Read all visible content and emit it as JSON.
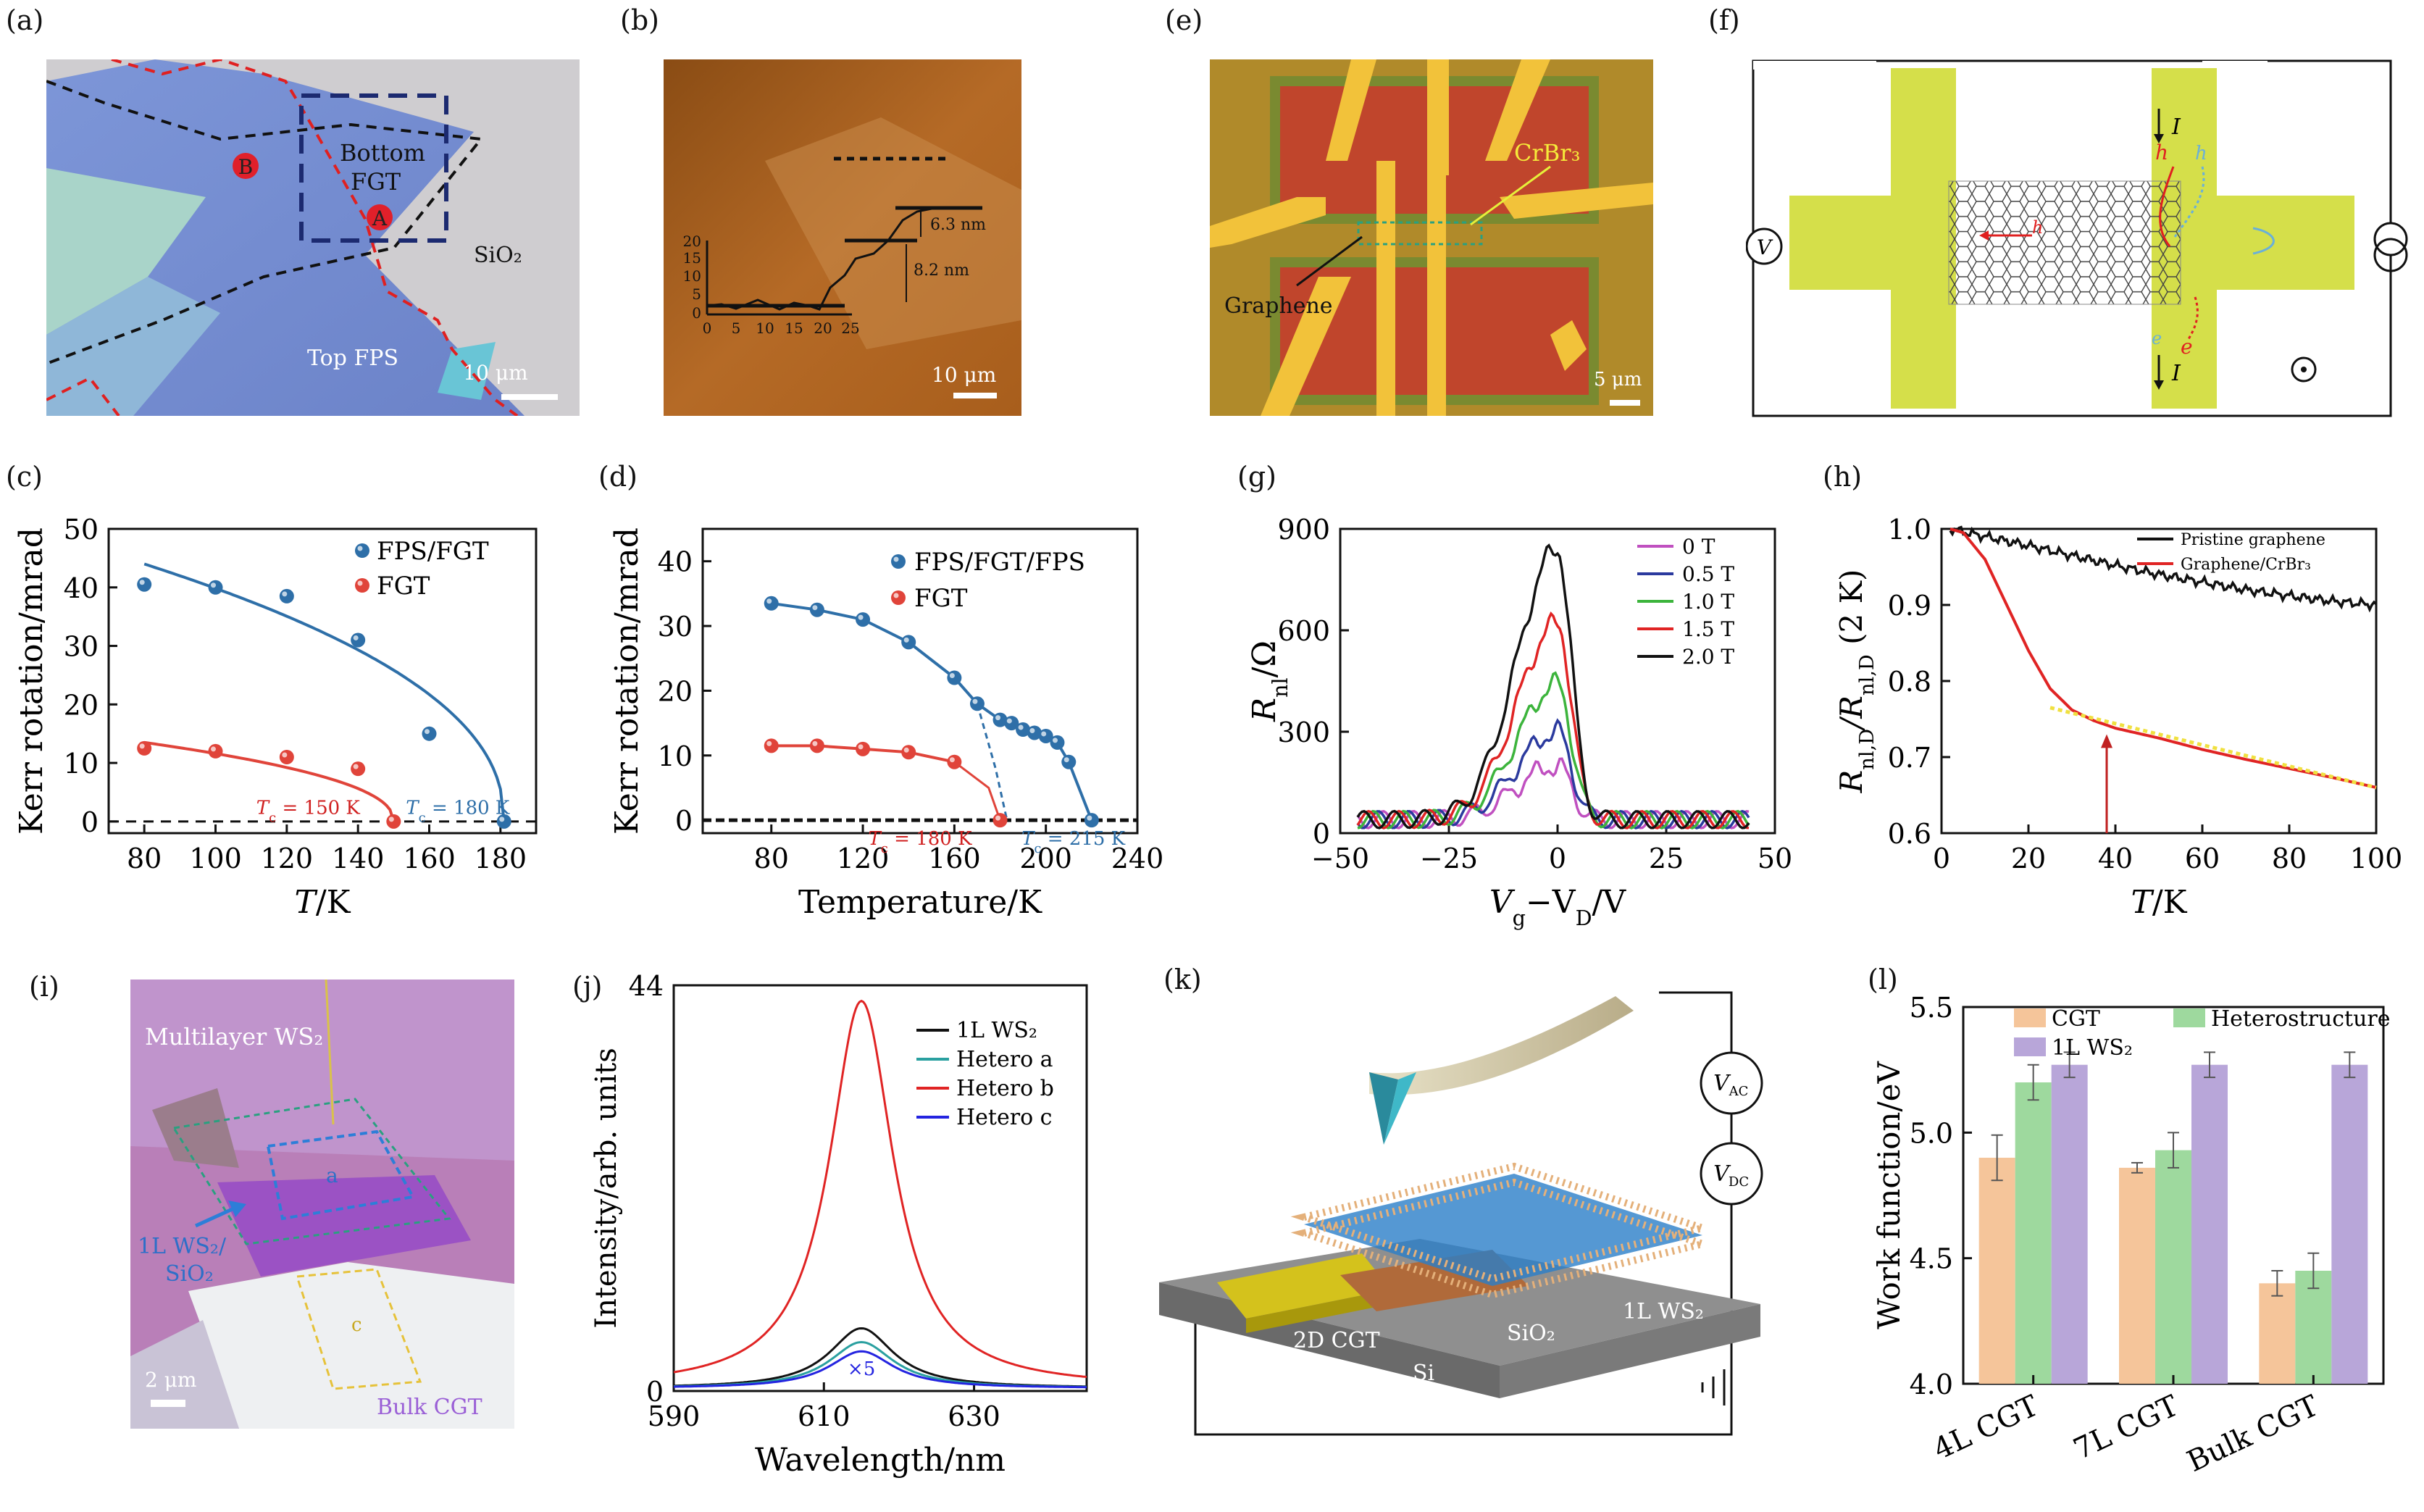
{
  "panel_labels": {
    "a": "(a)",
    "b": "(b)",
    "c": "(c)",
    "d": "(d)",
    "e": "(e)",
    "f": "(f)",
    "g": "(g)",
    "h": "(h)",
    "i": "(i)",
    "j": "(j)",
    "k": "(k)",
    "l": "(l)"
  },
  "panel_a": {
    "bottom_fgt_1": "Bottom",
    "bottom_fgt_2": "FGT",
    "sio2": "SiO₂",
    "top_fps": "Top FPS",
    "scale": "10 μm",
    "marker_a": "A",
    "marker_b": "B",
    "colors": {
      "marker": "#e0202a"
    }
  },
  "panel_b": {
    "scale": "10 μm",
    "step1": "6.3 nm",
    "step2": "8.2 nm",
    "yticks": [
      "20",
      "15",
      "10",
      "5",
      "0"
    ],
    "xticks": [
      "0",
      "5",
      "10",
      "15",
      "20",
      "25"
    ]
  },
  "panel_e": {
    "crbr3": "CrBr₃",
    "graphene": "Graphene",
    "scale": "5 μm"
  },
  "panel_f": {
    "v": "V",
    "i_top": "I",
    "i_bot": "I",
    "h": "h",
    "e": "e",
    "h2": "h",
    "e2": "e",
    "h3": "h"
  },
  "panel_i": {
    "multilayer": "Multilayer WS₂",
    "mono_1": "1L WS₂/",
    "mono_2": "SiO₂",
    "bulk": "Bulk CGT",
    "region_a": "a",
    "region_c": "c",
    "scale": "2 μm"
  },
  "panel_k": {
    "vac": "V",
    "vac_sub": "AC",
    "vdc": "V",
    "vdc_sub": "DC",
    "cgt": "2D CGT",
    "sio2": "SiO₂",
    "si": "Si",
    "ws2": "1L WS₂"
  },
  "chart_data": [
    {
      "id": "c",
      "type": "scatter",
      "ylabel": "Kerr rotation/mrad",
      "xlabel_i": "T",
      "xlabel_r": "/K",
      "xlim": [
        70,
        190
      ],
      "ylim": [
        -2,
        50
      ],
      "xticks": [
        80,
        100,
        120,
        140,
        160,
        180
      ],
      "yticks": [
        0,
        10,
        20,
        30,
        40,
        50
      ],
      "legend": "top-right",
      "series": [
        {
          "name": "FPS/FGT",
          "color": "#2e6fa8",
          "x": [
            80,
            100,
            120,
            140,
            160,
            181
          ],
          "y": [
            40.5,
            40,
            38.5,
            31,
            15,
            0
          ]
        },
        {
          "name": "FGT",
          "color": "#e0443a",
          "x": [
            80,
            100,
            120,
            140,
            150
          ],
          "y": [
            12.5,
            12,
            11,
            9,
            0
          ]
        }
      ],
      "annotations": [
        {
          "text": "T",
          "sub": "c",
          "rest": " = 150 K",
          "color": "#d02020"
        },
        {
          "text": "T",
          "sub": "c",
          "rest": " = 180 K",
          "color": "#2e6fa8"
        }
      ]
    },
    {
      "id": "d",
      "type": "scatter",
      "ylabel": "Kerr rotation/mrad",
      "xlabel": "Temperature/K",
      "xlim": [
        50,
        240
      ],
      "ylim": [
        -2,
        45
      ],
      "xticks": [
        80,
        120,
        160,
        200,
        240
      ],
      "yticks": [
        0,
        10,
        20,
        30,
        40
      ],
      "legend": "top-right",
      "series": [
        {
          "name": "FPS/FGT/FPS",
          "color": "#2e6fa8",
          "x": [
            80,
            100,
            120,
            140,
            160,
            170,
            180,
            185,
            190,
            195,
            200,
            205,
            210,
            220
          ],
          "y": [
            33.5,
            32.5,
            31,
            27.5,
            22,
            18,
            15.5,
            15,
            14,
            13.5,
            13,
            12,
            9,
            0
          ]
        },
        {
          "name": "FGT",
          "color": "#e0443a",
          "x": [
            80,
            100,
            120,
            140,
            160,
            180
          ],
          "y": [
            11.5,
            11.5,
            11,
            10.5,
            9,
            0
          ]
        }
      ],
      "annotations": [
        {
          "text": "T",
          "sub": "c",
          "rest": " = 180 K",
          "color": "#d02020"
        },
        {
          "text": "T",
          "sub": "c",
          "rest": " = 215 K",
          "color": "#2e6fa8"
        }
      ]
    },
    {
      "id": "g",
      "type": "line",
      "ylabel_i": "R",
      "ylabel_sub": "nl",
      "ylabel_r": "/Ω",
      "xlabel": "V",
      "xlabel_sub1": "g",
      "xlabel_mid": "−V",
      "xlabel_sub2": "D",
      "xlabel_end": "/V",
      "xlim": [
        -50,
        50
      ],
      "ylim": [
        0,
        900
      ],
      "xticks": [
        -50,
        -25,
        0,
        25,
        50
      ],
      "xtick_labels": [
        "−50",
        "−25",
        "0",
        "25",
        "50"
      ],
      "yticks": [
        0,
        300,
        600,
        900
      ],
      "legend": "top-right",
      "series": [
        {
          "name": "0 T",
          "color": "#c050c0",
          "peak": 200
        },
        {
          "name": "0.5 T",
          "color": "#2b3a9e",
          "peak": 300
        },
        {
          "name": "1.0 T",
          "color": "#3cb43c",
          "peak": 440
        },
        {
          "name": "1.5 T",
          "color": "#e02424",
          "peak": 620
        },
        {
          "name": "2.0 T",
          "color": "#111111",
          "peak": 840
        }
      ]
    },
    {
      "id": "h",
      "type": "line",
      "ylabel": "R",
      "ylabel_sub": "nl,D",
      "ylabel_mid": "/R",
      "ylabel_sub2": "nl,D",
      "ylabel_end": " (2 K)",
      "xlabel_i": "T",
      "xlabel_r": "/K",
      "xlim": [
        0,
        100
      ],
      "ylim": [
        0.6,
        1.0
      ],
      "xticks": [
        0,
        20,
        40,
        60,
        80,
        100
      ],
      "yticks": [
        0.6,
        0.7,
        0.8,
        0.9,
        1.0
      ],
      "ytick_labels": [
        "0.6",
        "0.7",
        "0.8",
        "0.9",
        "1.0"
      ],
      "legend": "top-right",
      "series": [
        {
          "name": "Pristine graphene",
          "color": "#111111",
          "x": [
            2,
            10,
            20,
            30,
            40,
            50,
            60,
            70,
            80,
            90,
            100
          ],
          "y": [
            1.0,
            0.99,
            0.978,
            0.965,
            0.952,
            0.94,
            0.93,
            0.92,
            0.912,
            0.905,
            0.9
          ]
        },
        {
          "name": "Graphene/CrBr₃",
          "color": "#e02424",
          "x": [
            2,
            5,
            10,
            15,
            20,
            25,
            30,
            35,
            40,
            50,
            60,
            70,
            80,
            90,
            100
          ],
          "y": [
            1.0,
            0.995,
            0.96,
            0.9,
            0.84,
            0.79,
            0.762,
            0.748,
            0.738,
            0.725,
            0.71,
            0.697,
            0.685,
            0.673,
            0.66
          ]
        }
      ]
    },
    {
      "id": "j",
      "type": "line",
      "ylabel": "Intensity/arb. units",
      "xlabel": "Wavelength/nm",
      "xlim": [
        590,
        645
      ],
      "ylim": [
        0,
        44
      ],
      "xticks": [
        590,
        610,
        630
      ],
      "yticks": [
        0,
        44
      ],
      "legend": "top-right",
      "annotation": "×5",
      "series": [
        {
          "name": "1L WS₂",
          "color": "#111111",
          "peak": 6.5
        },
        {
          "name": "Hetero a",
          "color": "#2aa0a0",
          "peak": 5
        },
        {
          "name": "Hetero b",
          "color": "#e02424",
          "peak": 42
        },
        {
          "name": "Hetero c",
          "color": "#2424e0",
          "peak": 4
        }
      ]
    },
    {
      "id": "l",
      "type": "bar",
      "ylabel": "Work function/eV",
      "categories": [
        "4L CGT",
        "7L CGT",
        "Bulk CGT"
      ],
      "ylim": [
        4.0,
        5.5
      ],
      "yticks": [
        4.0,
        4.5,
        5.0,
        5.5
      ],
      "ytick_labels": [
        "4.0",
        "4.5",
        "5.0",
        "5.5"
      ],
      "legend": "top",
      "series": [
        {
          "name": "CGT",
          "color": "#f5c59a",
          "values": [
            4.9,
            4.86,
            4.4
          ],
          "err": [
            0.09,
            0.02,
            0.05
          ]
        },
        {
          "name": "Heterostructure",
          "color": "#9ed99e",
          "values": [
            5.2,
            4.93,
            4.45
          ],
          "err": [
            0.07,
            0.07,
            0.07
          ]
        },
        {
          "name": "1L WS₂",
          "color": "#b8a6d9",
          "values": [
            5.27,
            5.27,
            5.27
          ],
          "err": [
            0.05,
            0.05,
            0.05
          ]
        }
      ]
    }
  ]
}
